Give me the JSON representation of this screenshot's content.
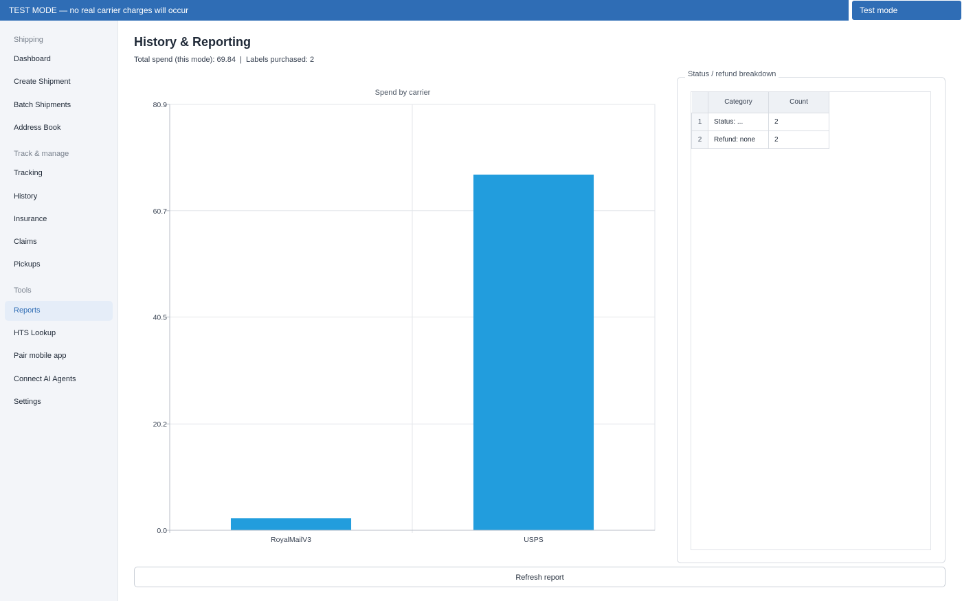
{
  "banner": {
    "text": "TEST MODE — no real carrier charges will occur"
  },
  "mode_select": {
    "value": "Test mode"
  },
  "sidebar": {
    "sections": [
      {
        "label": "Shipping",
        "items": [
          "Dashboard",
          "Create Shipment",
          "Batch Shipments",
          "Address Book"
        ]
      },
      {
        "label": "Track & manage",
        "items": [
          "Tracking",
          "History",
          "Insurance",
          "Claims",
          "Pickups"
        ]
      },
      {
        "label": "Tools",
        "items": [
          "Reports",
          "HTS Lookup",
          "Pair mobile app",
          "Connect AI Agents",
          "Settings"
        ]
      }
    ],
    "active_item": "Reports"
  },
  "page": {
    "title": "History & Reporting",
    "summary": "Total spend (this mode): 69.84  |  Labels purchased: 2"
  },
  "chart_data": {
    "type": "bar",
    "title": "Spend by carrier",
    "categories": [
      "RoyalMailV3",
      "USPS"
    ],
    "values": [
      2.3,
      67.54
    ],
    "ylim": [
      0,
      80.9
    ],
    "yticks": [
      "0.0",
      "20.2",
      "40.5",
      "60.7",
      "80.9"
    ],
    "xlabel": "",
    "ylabel": "",
    "grid": true,
    "bar_color": "#229ddd"
  },
  "breakdown": {
    "title": "Status / refund breakdown",
    "columns": [
      "Category",
      "Count"
    ],
    "rows": [
      {
        "num": "1",
        "category": "Status: ...",
        "count": "2"
      },
      {
        "num": "2",
        "category": "Refund: none",
        "count": "2"
      }
    ]
  },
  "refresh_button": {
    "label": "Refresh report"
  }
}
